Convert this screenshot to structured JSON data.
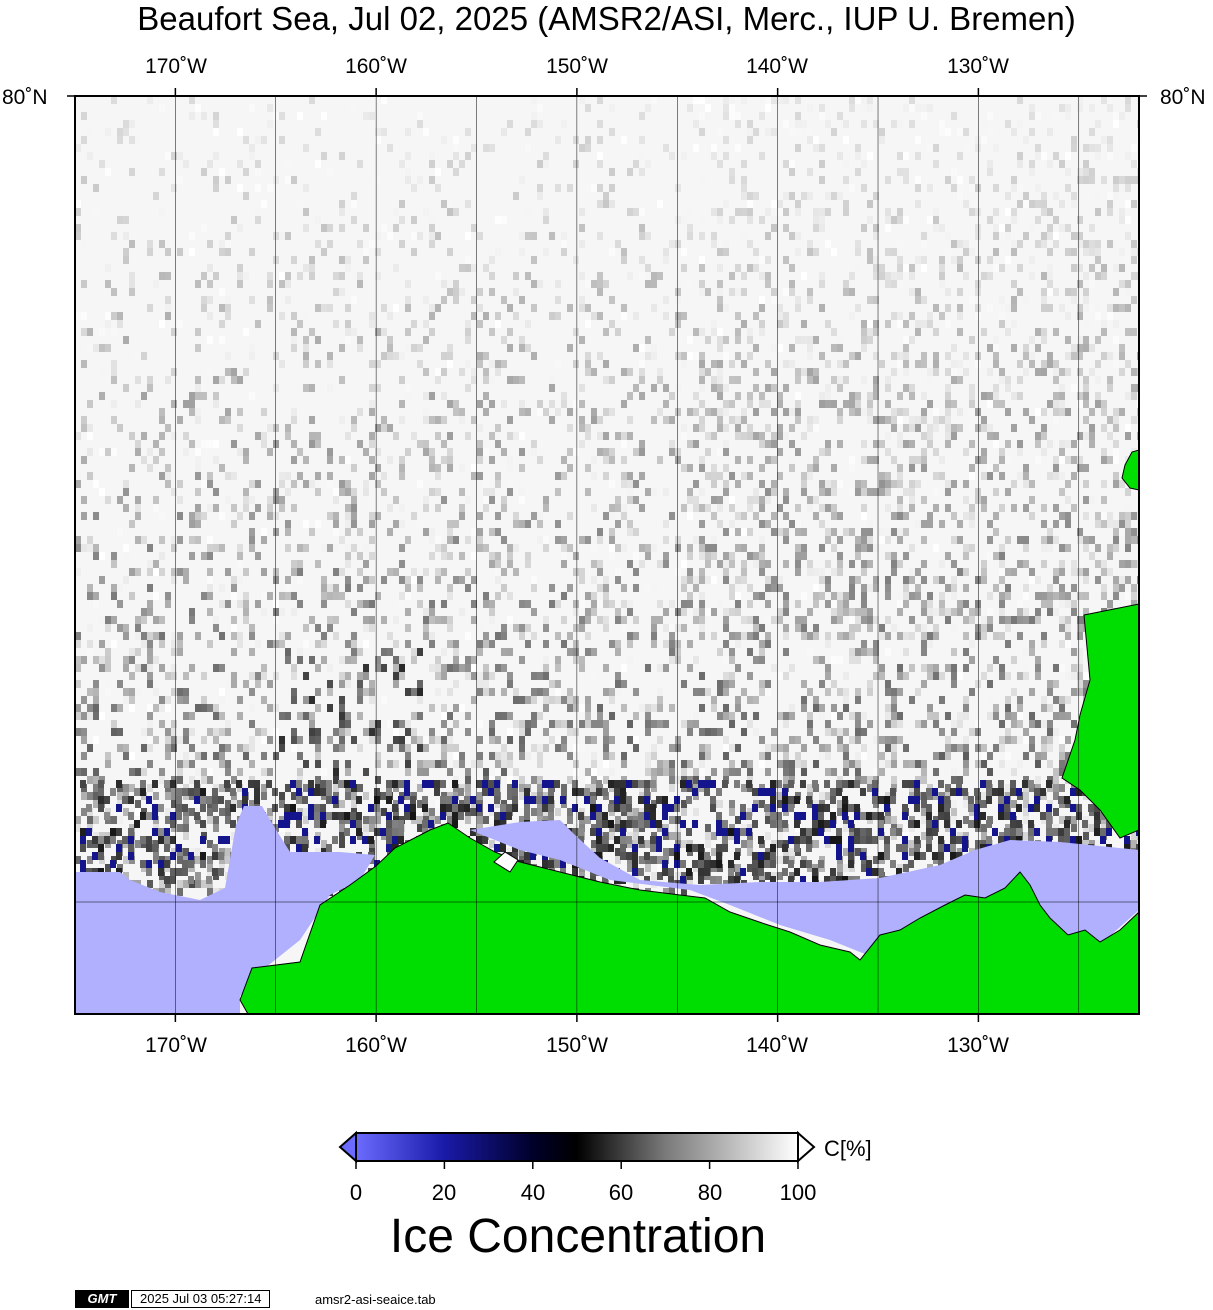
{
  "title": "Beaufort Sea, Jul 02, 2025 (AMSR2/ASI, Merc., IUP U. Bremen)",
  "map": {
    "longitude_labels": [
      "170˚W",
      "160˚W",
      "150˚W",
      "140˚W",
      "130˚W"
    ],
    "longitudes": [
      -170,
      -160,
      -150,
      -140,
      -130
    ],
    "extent": {
      "lon_min": -175,
      "lon_max": -122
    },
    "latitude_label": "80˚N",
    "colors": {
      "land": "#00dd00",
      "open_water": "#b0b0ff",
      "frame": "#000000",
      "graticule": "#000000"
    }
  },
  "colorbar": {
    "tick_labels": [
      "0",
      "20",
      "40",
      "60",
      "80",
      "100"
    ],
    "ticks": [
      0,
      20,
      40,
      60,
      80,
      100
    ],
    "unit": "C[%]",
    "title": "Ice Concentration",
    "stops": [
      {
        "value": 0,
        "color": "#6b6bff"
      },
      {
        "value": 20,
        "color": "#1a1aa8"
      },
      {
        "value": 40,
        "color": "#00002a"
      },
      {
        "value": 50,
        "color": "#000000"
      },
      {
        "value": 70,
        "color": "#7a7a7a"
      },
      {
        "value": 100,
        "color": "#ffffff"
      }
    ]
  },
  "footer": {
    "logo": "GMT",
    "timestamp": "2025 Jul 03 05:27:14",
    "filename": "amsr2-asi-seaice.tab"
  }
}
